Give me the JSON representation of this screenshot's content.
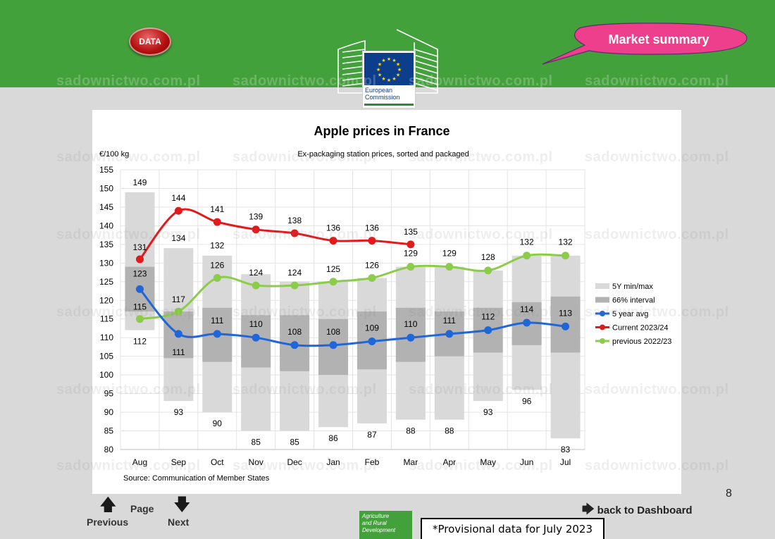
{
  "header": {
    "data_button": "DATA",
    "market_summary": "Market summary",
    "ec_logo_text": [
      "European",
      "Commission"
    ]
  },
  "watermark": "sadownictwo.com.pl",
  "chart_data": {
    "type": "bar",
    "title": "Apple prices in France",
    "subtitle": "Ex-packaging station prices, sorted and packaged",
    "ylabel": "€/100 kg",
    "xlabel": "",
    "ylim": [
      80,
      155
    ],
    "yticks": [
      80,
      85,
      90,
      95,
      100,
      105,
      110,
      115,
      120,
      125,
      130,
      135,
      140,
      145,
      150,
      155
    ],
    "grid": "both",
    "categories": [
      "Aug",
      "Sep",
      "Oct",
      "Nov",
      "Dec",
      "Jan",
      "Feb",
      "Mar",
      "Apr",
      "May",
      "Jun",
      "Jul"
    ],
    "legend_position": "right",
    "source": "Source: Communication of Member States",
    "min_max": {
      "name": "5Y min/max",
      "color": "#d9d9d9",
      "max": [
        149,
        134,
        132,
        127,
        125,
        125,
        126,
        129,
        129,
        128,
        132,
        132
      ],
      "min": [
        112,
        93,
        90,
        85,
        85,
        86,
        87,
        88,
        88,
        93,
        96,
        83
      ],
      "label_max": [
        149,
        134,
        132,
        null,
        null,
        null,
        null,
        null,
        null,
        null,
        null,
        null
      ],
      "label_min": [
        112,
        93,
        90,
        85,
        85,
        86,
        87,
        88,
        88,
        93,
        96,
        83
      ]
    },
    "interval_66": {
      "name": "66% interval",
      "color": "#b2b2b2",
      "upper": [
        129,
        117,
        118,
        116,
        116,
        115,
        117,
        118,
        117,
        118,
        119.5,
        121
      ],
      "lower": [
        117,
        104.5,
        103.5,
        102,
        101,
        100,
        101.5,
        103.5,
        105,
        106,
        108,
        106
      ]
    },
    "series": [
      {
        "name": "5 year avg",
        "color": "#1f66d9",
        "values": [
          123,
          111,
          111,
          110,
          108,
          108,
          109,
          110,
          111,
          112,
          114,
          113
        ],
        "labels": [
          "123",
          "111",
          "111",
          "110",
          "108",
          "108",
          "109",
          "110",
          "111",
          "112",
          "114",
          "113"
        ]
      },
      {
        "name": "Current 2023/24",
        "color": "#e31a1c",
        "values": [
          131,
          144,
          141,
          139,
          138,
          136,
          136,
          135,
          null,
          null,
          null,
          null
        ],
        "labels": [
          "131",
          "144",
          "141",
          "139",
          "138",
          "136",
          "136",
          "135",
          "",
          "",
          "",
          ""
        ]
      },
      {
        "name": "previous 2022/23",
        "color": "#8ccc4a",
        "values": [
          115,
          117,
          126,
          124,
          124,
          125,
          126,
          129,
          129,
          128,
          132,
          132
        ],
        "labels": [
          "115",
          "117",
          "126",
          "124",
          "124",
          "125",
          "126",
          "129",
          "129",
          "128",
          "132",
          "132"
        ]
      }
    ]
  },
  "footer": {
    "previous_label": "Previous",
    "page_label": "Page",
    "next_label": "Next",
    "dashboard_link": "back to Dashboard",
    "page_number": "8",
    "agri_text": [
      "Agriculture",
      "and Rural",
      "Development"
    ],
    "provisional_note": "*Provisional data for July 2023"
  }
}
